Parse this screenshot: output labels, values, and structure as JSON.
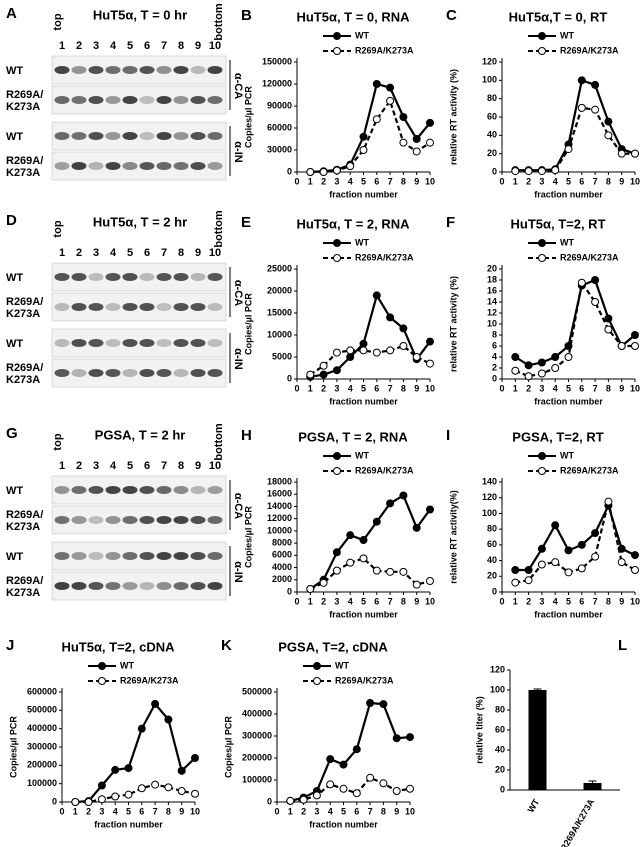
{
  "blots": [
    {
      "panel": "A",
      "title": "HuT5α, T = 0 hr",
      "top": "top",
      "bottom": "bottom",
      "lanes": [
        1,
        2,
        3,
        4,
        5,
        6,
        7,
        8,
        9,
        10
      ],
      "groups": [
        {
          "antibody": "α-CA",
          "rows": [
            [
              "WT"
            ],
            [
              "R269A/",
              "K273A"
            ]
          ]
        },
        {
          "antibody": "α-IN",
          "rows": [
            [
              "WT"
            ],
            [
              "R269A/",
              "K273A"
            ]
          ]
        }
      ]
    },
    {
      "panel": "D",
      "title": "HuT5α, T = 2 hr",
      "top": "top",
      "bottom": "bottom",
      "lanes": [
        1,
        2,
        3,
        4,
        5,
        6,
        7,
        8,
        9,
        10
      ],
      "groups": [
        {
          "antibody": "α-CA",
          "rows": [
            [
              "WT"
            ],
            [
              "R269A/",
              "K273A"
            ]
          ]
        },
        {
          "antibody": "α-IN",
          "rows": [
            [
              "WT"
            ],
            [
              "R269A/",
              "K273A"
            ]
          ]
        }
      ]
    },
    {
      "panel": "G",
      "title": "PGSA, T = 2 hr",
      "top": "top",
      "bottom": "bottom",
      "lanes": [
        1,
        2,
        3,
        4,
        5,
        6,
        7,
        8,
        9,
        10
      ],
      "groups": [
        {
          "antibody": "α-CA",
          "rows": [
            [
              "WT"
            ],
            [
              "R269A/",
              "K273A"
            ]
          ]
        },
        {
          "antibody": "α-IN",
          "rows": [
            [
              "WT"
            ],
            [
              "R269A/",
              "K273A"
            ]
          ]
        }
      ]
    }
  ],
  "chart_data": [
    {
      "type": "line",
      "panel": "B",
      "title": "HuT5α, T = 0, RNA",
      "y_label": "Copies/µl PCR",
      "x_label": "fraction number",
      "x": [
        1,
        2,
        3,
        4,
        5,
        6,
        7,
        8,
        9,
        10
      ],
      "xlim": [
        0,
        10
      ],
      "xticks": [
        0,
        1,
        2,
        3,
        4,
        5,
        6,
        7,
        8,
        9,
        10
      ],
      "ylim": [
        0,
        150000
      ],
      "yticks": [
        0,
        30000,
        60000,
        90000,
        120000,
        150000
      ],
      "series": [
        {
          "name": "WT",
          "color": "#000000",
          "style": "solid",
          "marker": "filled",
          "values": [
            0,
            1000,
            3000,
            10000,
            48000,
            120000,
            115000,
            75000,
            45000,
            67000
          ]
        },
        {
          "name": "R269A/K273A",
          "color": "#000000",
          "style": "dashed",
          "marker": "open",
          "values": [
            0,
            0,
            2000,
            8000,
            30000,
            72000,
            97000,
            40000,
            28000,
            40000
          ]
        }
      ]
    },
    {
      "type": "line",
      "panel": "C",
      "title": "HuT5α,T = 0, RT",
      "y_label": "relative RT activity (%)",
      "x_label": "fraction number",
      "x": [
        1,
        2,
        3,
        4,
        5,
        6,
        7,
        8,
        9,
        10
      ],
      "xlim": [
        0,
        10
      ],
      "xticks": [
        0,
        1,
        2,
        3,
        4,
        5,
        6,
        7,
        8,
        9,
        10
      ],
      "ylim": [
        0,
        120
      ],
      "yticks": [
        0,
        20,
        40,
        60,
        80,
        100,
        120
      ],
      "series": [
        {
          "name": "WT",
          "color": "#000000",
          "style": "solid",
          "marker": "filled",
          "values": [
            2,
            2,
            2,
            3,
            30,
            100,
            95,
            55,
            25,
            20
          ]
        },
        {
          "name": "R269A/K273A",
          "color": "#000000",
          "style": "dashed",
          "marker": "open",
          "values": [
            1,
            1,
            1,
            2,
            25,
            70,
            68,
            40,
            20,
            20
          ]
        }
      ]
    },
    {
      "type": "line",
      "panel": "E",
      "title": "HuT5α, T = 2, RNA",
      "y_label": "Copies/µl PCR",
      "x_label": "fraction number",
      "x": [
        1,
        2,
        3,
        4,
        5,
        6,
        7,
        8,
        9,
        10
      ],
      "xlim": [
        0,
        10
      ],
      "xticks": [
        0,
        1,
        2,
        3,
        4,
        5,
        6,
        7,
        8,
        9,
        10
      ],
      "ylim": [
        0,
        25000
      ],
      "yticks": [
        0,
        5000,
        10000,
        15000,
        20000,
        25000
      ],
      "series": [
        {
          "name": "WT",
          "color": "#000000",
          "style": "solid",
          "marker": "filled",
          "values": [
            500,
            1000,
            2000,
            5000,
            8000,
            19000,
            14000,
            11500,
            4500,
            8500
          ]
        },
        {
          "name": "R269A/K273A",
          "color": "#000000",
          "style": "dashed",
          "marker": "open",
          "values": [
            1000,
            3000,
            6000,
            6500,
            6500,
            6000,
            6500,
            7500,
            5000,
            3500
          ]
        }
      ]
    },
    {
      "type": "line",
      "panel": "F",
      "title": "HuT5α, T=2, RT",
      "y_label": "relative RT activity (%)",
      "x_label": "fraction number",
      "x": [
        1,
        2,
        3,
        4,
        5,
        6,
        7,
        8,
        9,
        10
      ],
      "xlim": [
        0,
        10
      ],
      "xticks": [
        0,
        1,
        2,
        3,
        4,
        5,
        6,
        7,
        8,
        9,
        10
      ],
      "ylim": [
        0,
        20
      ],
      "yticks": [
        0,
        2,
        4,
        6,
        8,
        10,
        12,
        14,
        16,
        18,
        20
      ],
      "series": [
        {
          "name": "WT",
          "color": "#000000",
          "style": "solid",
          "marker": "filled",
          "values": [
            4,
            2.5,
            3,
            4,
            6,
            17,
            18,
            11,
            6,
            8
          ]
        },
        {
          "name": "R269A/K273A",
          "color": "#000000",
          "style": "dashed",
          "marker": "open",
          "values": [
            1.5,
            0.5,
            1,
            2,
            4,
            17.5,
            14,
            9,
            6,
            6
          ]
        }
      ]
    },
    {
      "type": "line",
      "panel": "H",
      "title": "PGSA, T = 2, RNA",
      "y_label": "Copies/µl PCR",
      "x_label": "fraction number",
      "x": [
        1,
        2,
        3,
        4,
        5,
        6,
        7,
        8,
        9,
        10
      ],
      "xlim": [
        0,
        10
      ],
      "xticks": [
        0,
        1,
        2,
        3,
        4,
        5,
        6,
        7,
        8,
        9,
        10
      ],
      "ylim": [
        0,
        18000
      ],
      "yticks": [
        0,
        2000,
        4000,
        6000,
        8000,
        10000,
        12000,
        14000,
        16000,
        18000
      ],
      "series": [
        {
          "name": "WT",
          "color": "#000000",
          "style": "solid",
          "marker": "filled",
          "values": [
            500,
            2000,
            6500,
            9300,
            8500,
            11500,
            14500,
            15800,
            10500,
            13500
          ]
        },
        {
          "name": "R269A/K273A",
          "color": "#000000",
          "style": "dashed",
          "marker": "open",
          "values": [
            500,
            1500,
            3500,
            4800,
            5500,
            3500,
            3300,
            3300,
            1200,
            1800
          ]
        }
      ]
    },
    {
      "type": "line",
      "panel": "I",
      "title": "PGSA, T=2, RT",
      "y_label": "relative RT activity(%)",
      "x_label": "fraction number",
      "x": [
        1,
        2,
        3,
        4,
        5,
        6,
        7,
        8,
        9,
        10
      ],
      "xlim": [
        0,
        10
      ],
      "xticks": [
        0,
        1,
        2,
        3,
        4,
        5,
        6,
        7,
        8,
        9,
        10
      ],
      "ylim": [
        0,
        140
      ],
      "yticks": [
        0,
        20,
        40,
        60,
        80,
        100,
        120,
        140
      ],
      "series": [
        {
          "name": "WT",
          "color": "#000000",
          "style": "solid",
          "marker": "filled",
          "values": [
            28,
            28,
            55,
            85,
            53,
            60,
            75,
            110,
            55,
            47
          ]
        },
        {
          "name": "R269A/K273A",
          "color": "#000000",
          "style": "dashed",
          "marker": "open",
          "values": [
            12,
            15,
            35,
            38,
            25,
            30,
            45,
            115,
            38,
            28
          ]
        }
      ]
    },
    {
      "type": "line",
      "panel": "J",
      "title": "HuT5α, T=2, cDNA",
      "y_label": "Copies/µl PCR",
      "x_label": "fraction number",
      "x": [
        1,
        2,
        3,
        4,
        5,
        6,
        7,
        8,
        9,
        10
      ],
      "xlim": [
        0,
        10
      ],
      "xticks": [
        0,
        1,
        2,
        3,
        4,
        5,
        6,
        7,
        8,
        9,
        10
      ],
      "ylim": [
        0,
        600000
      ],
      "yticks": [
        0,
        100000,
        200000,
        300000,
        400000,
        500000,
        600000
      ],
      "series": [
        {
          "name": "WT",
          "color": "#000000",
          "style": "solid",
          "marker": "filled",
          "values": [
            0,
            5000,
            90000,
            175000,
            185000,
            400000,
            535000,
            450000,
            170000,
            240000
          ]
        },
        {
          "name": "R269A/K273A",
          "color": "#000000",
          "style": "dashed",
          "marker": "open",
          "values": [
            0,
            0,
            15000,
            30000,
            40000,
            75000,
            95000,
            80000,
            60000,
            45000
          ]
        }
      ]
    },
    {
      "type": "line",
      "panel": "K",
      "title": "PGSA, T=2, cDNA",
      "y_label": "Copies/µl PCR",
      "x_label": "fraction number",
      "x": [
        1,
        2,
        3,
        4,
        5,
        6,
        7,
        8,
        9,
        10
      ],
      "xlim": [
        0,
        10
      ],
      "xticks": [
        0,
        1,
        2,
        3,
        4,
        5,
        6,
        7,
        8,
        9,
        10
      ],
      "ylim": [
        0,
        500000
      ],
      "yticks": [
        0,
        100000,
        200000,
        300000,
        400000,
        500000
      ],
      "series": [
        {
          "name": "WT",
          "color": "#000000",
          "style": "solid",
          "marker": "filled",
          "values": [
            5000,
            20000,
            50000,
            195000,
            170000,
            240000,
            450000,
            445000,
            290000,
            295000
          ]
        },
        {
          "name": "R269A/K273A",
          "color": "#000000",
          "style": "dashed",
          "marker": "open",
          "values": [
            5000,
            10000,
            30000,
            80000,
            60000,
            40000,
            110000,
            85000,
            50000,
            60000
          ]
        }
      ]
    },
    {
      "type": "bar",
      "panel": "L",
      "y_label": "relative titer (%)",
      "categories": [
        "WT",
        "R269A/K273A"
      ],
      "values": [
        100,
        7
      ],
      "errors": [
        1,
        2
      ],
      "color": "#000000",
      "ylim": [
        0,
        120
      ],
      "yticks": [
        0,
        20,
        40,
        60,
        80,
        100,
        120
      ]
    }
  ]
}
